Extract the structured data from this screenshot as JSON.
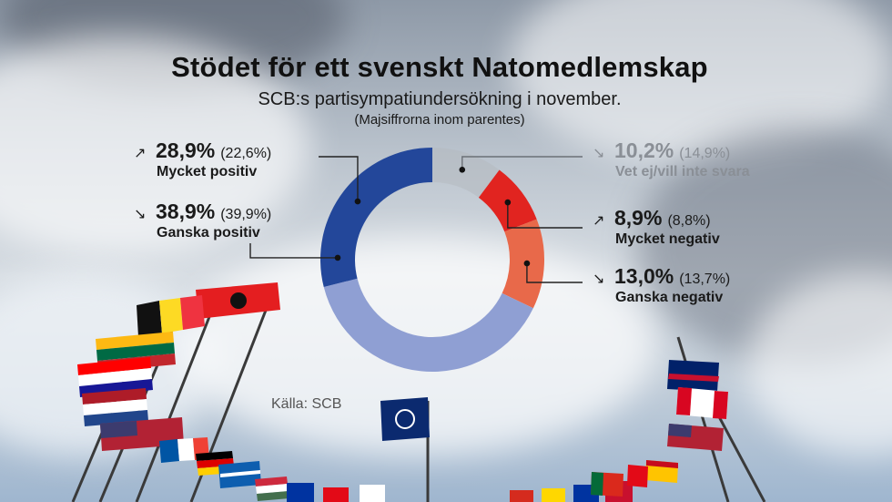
{
  "chart_data": {
    "type": "pie",
    "title": "Stödet för ett svenskt Natomedlemskap",
    "subtitle": "SCB:s partisympatiundersökning i november.",
    "note": "(Majsiffrorna inom parentes)",
    "source": "Källa: SCB",
    "unit": "%",
    "series": [
      {
        "name": "Mycket positiv",
        "value": 28.9,
        "label": "28,9%",
        "previous_label": "(22,6%)",
        "previous": 22.6,
        "trend": "up",
        "color": "#23479a"
      },
      {
        "name": "Ganska positiv",
        "value": 38.9,
        "label": "38,9%",
        "previous_label": "(39,9%)",
        "previous": 39.9,
        "trend": "down",
        "color": "#8f9fd3"
      },
      {
        "name": "Ganska negativ",
        "value": 13.0,
        "label": "13,0%",
        "previous_label": "(13,7%)",
        "previous": 13.7,
        "trend": "down",
        "color": "#e8694a"
      },
      {
        "name": "Mycket negativ",
        "value": 8.9,
        "label": "8,9%",
        "previous_label": "(8,8%)",
        "previous": 8.8,
        "trend": "up",
        "color": "#e12420"
      },
      {
        "name": "Vet ej/vill inte svara",
        "value": 10.2,
        "label": "10,2%",
        "previous_label": "(14,9%)",
        "previous": 14.9,
        "trend": "down",
        "color": "#b4b9bf"
      }
    ]
  },
  "arrows": {
    "up": "↗",
    "down": "↘"
  }
}
